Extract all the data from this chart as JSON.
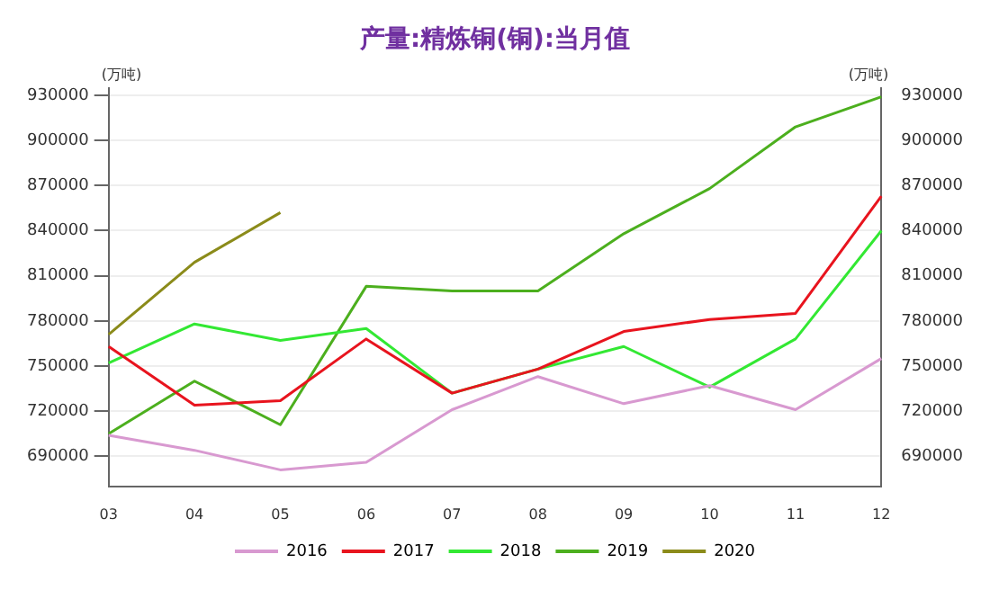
{
  "chart_data": {
    "type": "line",
    "title": "产量:精炼铜(铜):当月值",
    "ylabel": "(万吨)",
    "y2label": "(万吨)",
    "categories": [
      "03",
      "04",
      "05",
      "06",
      "07",
      "08",
      "09",
      "10",
      "11",
      "12"
    ],
    "series": [
      {
        "name": "2016",
        "color": "#d899d0",
        "values": [
          704000,
          694000,
          681000,
          686000,
          721000,
          743000,
          725000,
          737000,
          721000,
          755000
        ]
      },
      {
        "name": "2017",
        "color": "#e8141e",
        "values": [
          763000,
          724000,
          727000,
          768000,
          732000,
          748000,
          773000,
          781000,
          785000,
          863000
        ]
      },
      {
        "name": "2018",
        "color": "#33e833",
        "values": [
          752000,
          778000,
          767000,
          775000,
          732000,
          748000,
          763000,
          736000,
          768000,
          840000
        ]
      },
      {
        "name": "2019",
        "color": "#4caf1e",
        "values": [
          705000,
          740000,
          711000,
          803000,
          800000,
          800000,
          838000,
          868000,
          909000,
          929000
        ]
      },
      {
        "name": "2020",
        "color": "#8b8b1a",
        "values": [
          771000,
          819000,
          852000,
          null,
          null,
          null,
          null,
          null,
          null,
          null
        ]
      }
    ],
    "ylim": [
      670000,
      935000
    ],
    "yticks": [
      690000,
      720000,
      750000,
      780000,
      810000,
      840000,
      870000,
      900000,
      930000
    ],
    "y2lim": [
      670000,
      935000
    ],
    "y2ticks": [
      690000,
      720000,
      750000,
      780000,
      810000,
      840000,
      870000,
      900000,
      930000
    ],
    "grid": "y",
    "legend": "bottom",
    "marker": "none",
    "line_style": "solid"
  }
}
